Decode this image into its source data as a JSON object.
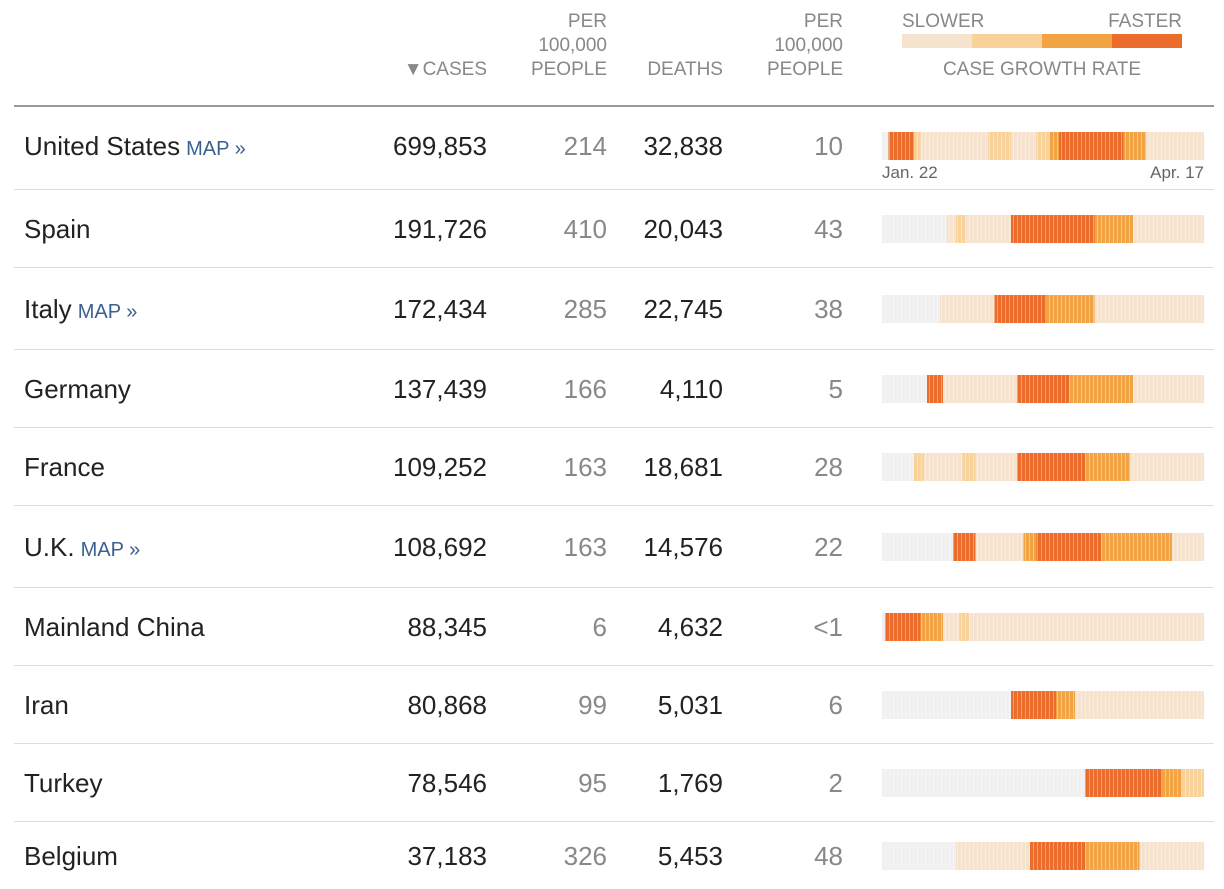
{
  "header": {
    "sort_icon": "▼",
    "cases": "CASES",
    "cases_per_100k": [
      "PER",
      "100,000",
      "PEOPLE"
    ],
    "deaths": "DEATHS",
    "deaths_per_100k": [
      "PER",
      "100,000",
      "PEOPLE"
    ],
    "legend": {
      "slower": "SLOWER",
      "faster": "FASTER",
      "label": "CASE GROWTH RATE"
    }
  },
  "dates": {
    "start": "Jan. 22",
    "end": "Apr. 17"
  },
  "table": {
    "rows": [
      [
        "United States",
        "MAP »",
        "699,853",
        "214",
        "32,838",
        "10"
      ],
      [
        "Spain",
        null,
        "191,726",
        "410",
        "20,043",
        "43"
      ],
      [
        "Italy",
        "MAP »",
        "172,434",
        "285",
        "22,745",
        "38"
      ],
      [
        "Germany",
        null,
        "137,439",
        "166",
        "4,110",
        "5"
      ],
      [
        "France",
        null,
        "109,252",
        "163",
        "18,681",
        "28"
      ],
      [
        "U.K.",
        "MAP »",
        "108,692",
        "163",
        "14,576",
        "22"
      ],
      [
        "Mainland China",
        null,
        "88,345",
        "6",
        "4,632",
        "<1"
      ],
      [
        "Iran",
        null,
        "80,868",
        "99",
        "5,031",
        "6"
      ],
      [
        "Turkey",
        null,
        "78,546",
        "95",
        "1,769",
        "2"
      ],
      [
        "Belgium",
        null,
        "37,183",
        "326",
        "5,453",
        "48"
      ]
    ]
  }
}
